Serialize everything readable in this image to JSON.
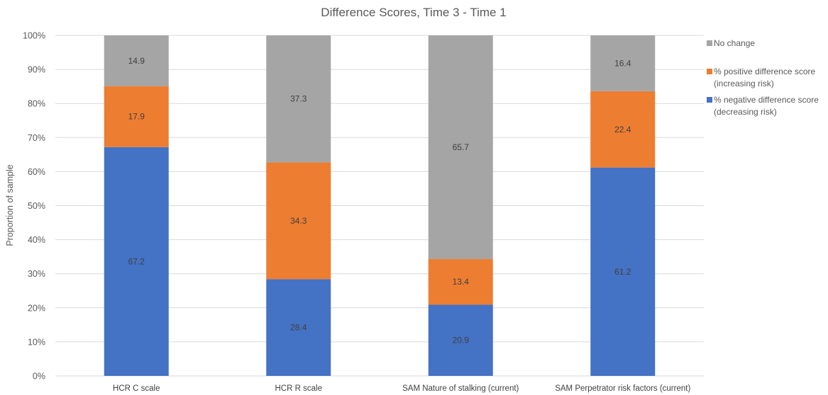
{
  "chart_data": {
    "type": "bar",
    "stacked": true,
    "percent_stacked": true,
    "title": "Difference Scores, Time 3 - Time 1",
    "ylabel": "Proportion  of sample",
    "xlabel": "",
    "ylim": [
      0,
      100
    ],
    "yticks": [
      "0%",
      "10%",
      "20%",
      "30%",
      "40%",
      "50%",
      "60%",
      "70%",
      "80%",
      "90%",
      "100%"
    ],
    "grid": true,
    "legend_position": "right",
    "categories": [
      "HCR C scale",
      "HCR R scale",
      "SAM Nature of stalking (current)",
      "SAM Perpetrator risk factors (current)"
    ],
    "series": [
      {
        "name": "% negative  difference score (decreasing risk)",
        "legend_lines": [
          "% negative  difference score",
          "(decreasing risk)"
        ],
        "color": "#4472c4",
        "values": [
          67.2,
          28.4,
          20.9,
          61.2
        ]
      },
      {
        "name": "% positive difference score (increasing risk)",
        "legend_lines": [
          "% positive difference score",
          "(increasing risk)"
        ],
        "color": "#ed7d31",
        "values": [
          17.9,
          34.3,
          13.4,
          22.4
        ]
      },
      {
        "name": "No change",
        "legend_lines": [
          "No change"
        ],
        "color": "#a5a5a5",
        "values": [
          14.9,
          37.3,
          65.7,
          16.4
        ]
      }
    ],
    "data_labels": [
      [
        "67.2",
        "28.4",
        "20.9",
        "61.2"
      ],
      [
        "17.9",
        "34.3",
        "13.4",
        "22.4"
      ],
      [
        "14.9",
        "37.3",
        "65.7",
        "16.4"
      ]
    ],
    "legend_order": [
      2,
      1,
      0
    ]
  }
}
